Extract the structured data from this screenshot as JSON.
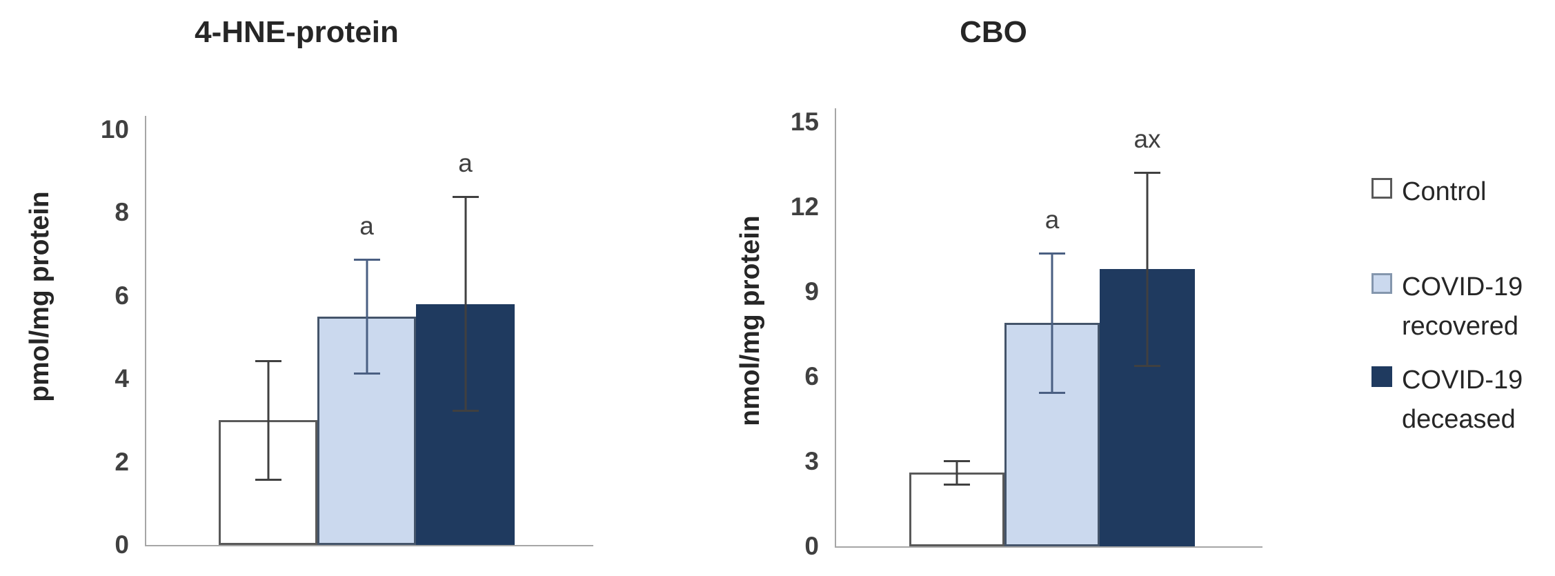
{
  "figure": {
    "background": "#ffffff"
  },
  "chart_data": [
    {
      "type": "bar",
      "title": "4-HNE-protein",
      "ylabel": "pmol/mg protein",
      "xlabel": "",
      "ylim": [
        0,
        10
      ],
      "ytick_step": 2,
      "grid": false,
      "legend_position": "right-of-figure",
      "categories": [
        "Control",
        "COVID-19 recovered",
        "COVID-19 deceased"
      ],
      "values": [
        3.0,
        5.5,
        5.8
      ],
      "errors": [
        1.45,
        1.4,
        2.6
      ],
      "annotations": [
        "",
        "a",
        "a"
      ]
    },
    {
      "type": "bar",
      "title": "CBO",
      "ylabel": "nmol/mg protein",
      "xlabel": "",
      "ylim": [
        0,
        15
      ],
      "ytick_step": 3,
      "grid": false,
      "legend_position": "right-of-figure",
      "categories": [
        "Control",
        "COVID-19 recovered",
        "COVID-19 deceased"
      ],
      "values": [
        2.6,
        7.9,
        9.8
      ],
      "errors": [
        0.45,
        2.5,
        3.45
      ],
      "annotations": [
        "",
        "a",
        "ax"
      ]
    }
  ],
  "series_styles": [
    {
      "name": "Control",
      "fill": "#ffffff",
      "border": "#595959",
      "error_color": "#404040"
    },
    {
      "name": "COVID-19 recovered",
      "fill": "#cbd9ee",
      "border": "#44546a",
      "error_color": "#4a5f82"
    },
    {
      "name": "COVID-19 deceased",
      "fill": "#1f3a5f",
      "border": "#1f3a5f",
      "error_color": "#404040"
    }
  ],
  "axis_style": {
    "line_color": "#a6a6a6",
    "tick_color": "#404040",
    "title_color": "#262626"
  },
  "legend": {
    "items": [
      {
        "label": "Control",
        "swatch_fill": "#ffffff",
        "swatch_border": "#595959"
      },
      {
        "label": "COVID-19\nrecovered",
        "swatch_fill": "#cbd9ee",
        "swatch_border": "#8496ad"
      },
      {
        "label": "COVID-19\ndeceased",
        "swatch_fill": "#1f3a5f",
        "swatch_border": "#1f3a5f"
      }
    ]
  }
}
